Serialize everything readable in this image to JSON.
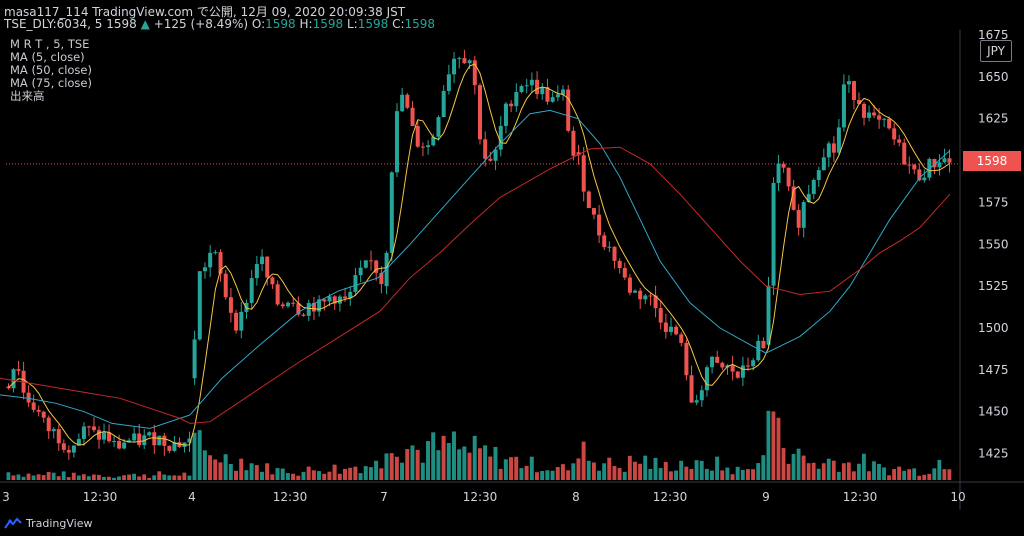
{
  "header": {
    "line1": "masa117_114 TradingView.com で公開, 12月 09, 2020 20:09:38 JST",
    "line2_prefix": "TSE_DLY:6034, 5",
    "last": "1598",
    "change_arrow": "▲",
    "change": "+125 (+8.49%)",
    "o_label": "O:",
    "o": "1598",
    "h_label": "H:",
    "h": "1598",
    "l_label": "L:",
    "l": "1598",
    "c_label": "C:",
    "c": "1598"
  },
  "legend": {
    "symbol": "M R T , 5, TSE",
    "ma5": "MA (5, close)",
    "ma50": "MA (50, close)",
    "ma75": "MA (75, close)",
    "volume": "出来高"
  },
  "currency": "JPY",
  "price_tag": "1598",
  "brand": "TradingView",
  "colors": {
    "up": "#26a69a",
    "down": "#ef5350",
    "ma5": "#f5c543",
    "ma50": "#31a9c9",
    "ma75": "#c62828",
    "price_line": "#ef5350",
    "background": "#000000"
  },
  "chart_data": {
    "type": "candlestick",
    "y_ticks": [
      1650,
      1625,
      1600,
      1575,
      1550,
      1525,
      1500,
      1475,
      1450,
      1425
    ],
    "y_axis_top_partial": "1675",
    "ylim": [
      1408,
      1678
    ],
    "x_ticks": [
      "3",
      "12:30",
      "4",
      "12:30",
      "7",
      "12:30",
      "8",
      "12:30",
      "9",
      "12:30",
      "10"
    ],
    "last_price": 1598,
    "ma50_end": 1606,
    "ma75_end": 1580,
    "session_price_path": [
      [
        [
          1465,
          1470,
          1484,
          1460,
          1452,
          1440,
          1437,
          1430,
          1432,
          1440,
          1435,
          1436,
          1428,
          1433,
          1432,
          1434,
          1435,
          1431,
          1432
        ],
        [
          0,
          5,
          10,
          18,
          30,
          40,
          50,
          60,
          70,
          80,
          90,
          100,
          110,
          120,
          130,
          140,
          150,
          165,
          186
        ]
      ],
      [
        [
          1470,
          1530,
          1547,
          1515,
          1500,
          1523,
          1545,
          1525,
          1512,
          1520,
          1510,
          1515,
          1512,
          1520,
          1515,
          1530,
          1540,
          1525
        ],
        [
          0,
          6,
          20,
          35,
          45,
          55,
          65,
          75,
          85,
          95,
          105,
          115,
          125,
          135,
          150,
          160,
          175,
          186
        ]
      ],
      [
        [
          1525,
          1620,
          1640,
          1612,
          1608,
          1650,
          1665,
          1660,
          1605,
          1595,
          1625,
          1640,
          1648,
          1645,
          1640,
          1635,
          1640,
          1600,
          1608
        ],
        [
          0,
          10,
          18,
          30,
          45,
          60,
          70,
          85,
          95,
          105,
          115,
          125,
          135,
          145,
          155,
          165,
          175,
          182,
          186
        ]
      ],
      [
        [
          1605,
          1580,
          1560,
          1550,
          1540,
          1525,
          1520,
          1520,
          1510,
          1500,
          1495,
          1470,
          1450,
          1460,
          1480,
          1475,
          1476,
          1470,
          1480,
          1485,
          1490,
          1482
        ],
        [
          0,
          10,
          20,
          30,
          40,
          50,
          60,
          70,
          80,
          90,
          100,
          110,
          112,
          120,
          130,
          140,
          150,
          160,
          170,
          175,
          180,
          186
        ]
      ],
      [
        [
          1490,
          1580,
          1600,
          1560,
          1578,
          1595,
          1610,
          1605,
          1645,
          1640,
          1628,
          1622,
          1620,
          1610,
          1600,
          1590,
          1595,
          1602,
          1598
        ],
        [
          0,
          6,
          15,
          30,
          40,
          50,
          60,
          70,
          78,
          90,
          100,
          110,
          120,
          130,
          140,
          150,
          160,
          175,
          186
        ]
      ]
    ],
    "ma50_path": [
      [
        1460,
        1458,
        1455,
        1450,
        1443,
        1440,
        1448,
        1470,
        1490,
        1510,
        1522,
        1530,
        1550,
        1570,
        1590,
        1610,
        1628,
        1630,
        1625,
        1610,
        1590,
        1565,
        1540,
        1515,
        1500,
        1490,
        1485,
        1495,
        1510,
        1525,
        1545,
        1565,
        1590,
        1606
      ],
      [
        0,
        28,
        56,
        84,
        112,
        150,
        190,
        222,
        260,
        300,
        338,
        378,
        410,
        440,
        470,
        500,
        530,
        550,
        578,
        600,
        620,
        640,
        660,
        690,
        720,
        750,
        766,
        800,
        830,
        850,
        870,
        890,
        920,
        950
      ]
    ],
    "ma75_path": [
      [
        1470,
        1466,
        1462,
        1458,
        1452,
        1446,
        1443,
        1444,
        1460,
        1480,
        1495,
        1510,
        1530,
        1545,
        1562,
        1578,
        1595,
        1607,
        1608,
        1598,
        1580,
        1560,
        1540,
        1525,
        1520,
        1522,
        1535,
        1545,
        1552,
        1560,
        1580
      ],
      [
        0,
        40,
        80,
        120,
        150,
        180,
        190,
        210,
        250,
        300,
        340,
        380,
        410,
        440,
        470,
        500,
        550,
        590,
        620,
        650,
        680,
        710,
        740,
        766,
        800,
        830,
        860,
        880,
        900,
        920,
        950
      ]
    ],
    "volume_profile": [
      {
        "session": "3",
        "bars": [
          8,
          6,
          6,
          5,
          7,
          6,
          5,
          5,
          6,
          5,
          4,
          5,
          5,
          6,
          4,
          6,
          5,
          6
        ]
      },
      {
        "session": "4",
        "bars": [
          35,
          24,
          26,
          22,
          20,
          18,
          14,
          12,
          10,
          10,
          8,
          10,
          12,
          12,
          10,
          14,
          15,
          16
        ]
      },
      {
        "session": "7",
        "bars": [
          50,
          36,
          34,
          30,
          34,
          32,
          38,
          30,
          30,
          28,
          24,
          22,
          20,
          18,
          16,
          14,
          12,
          12
        ]
      },
      {
        "session": "8",
        "bars": [
          40,
          22,
          18,
          16,
          14,
          18,
          20,
          16,
          14,
          16,
          18,
          14,
          15,
          16,
          12,
          10,
          10,
          20
        ]
      },
      {
        "session": "9",
        "bars": [
          75,
          45,
          32,
          24,
          18,
          16,
          20,
          18,
          16,
          18,
          14,
          12,
          10,
          12,
          10,
          9,
          12,
          20
        ]
      }
    ]
  }
}
